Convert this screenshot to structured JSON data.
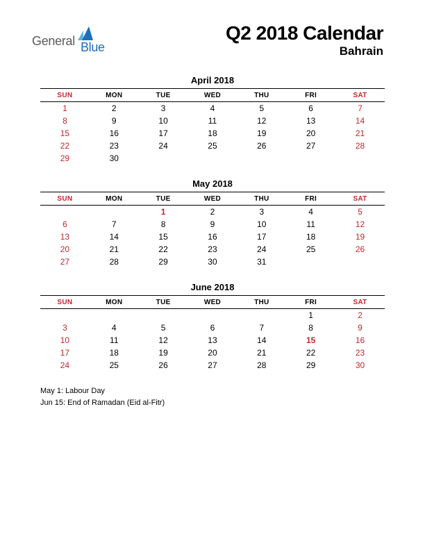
{
  "logo": {
    "text1": "General",
    "text2": "Blue"
  },
  "title": "Q2 2018 Calendar",
  "subtitle": "Bahrain",
  "colors": {
    "weekend": "#c1272d",
    "text": "#000000",
    "logo_gray": "#5a5a5c",
    "logo_blue": "#1e6fb8",
    "background": "#ffffff"
  },
  "day_headers": [
    "SUN",
    "MON",
    "TUE",
    "WED",
    "THU",
    "FRI",
    "SAT"
  ],
  "weekend_cols": [
    0,
    6
  ],
  "months": [
    {
      "title": "April 2018",
      "weeks": [
        [
          1,
          2,
          3,
          4,
          5,
          6,
          7
        ],
        [
          8,
          9,
          10,
          11,
          12,
          13,
          14
        ],
        [
          15,
          16,
          17,
          18,
          19,
          20,
          21
        ],
        [
          22,
          23,
          24,
          25,
          26,
          27,
          28
        ],
        [
          29,
          30,
          null,
          null,
          null,
          null,
          null
        ]
      ],
      "holidays": []
    },
    {
      "title": "May 2018",
      "weeks": [
        [
          null,
          null,
          1,
          2,
          3,
          4,
          5
        ],
        [
          6,
          7,
          8,
          9,
          10,
          11,
          12
        ],
        [
          13,
          14,
          15,
          16,
          17,
          18,
          19
        ],
        [
          20,
          21,
          22,
          23,
          24,
          25,
          26
        ],
        [
          27,
          28,
          29,
          30,
          31,
          null,
          null
        ]
      ],
      "holidays": [
        1
      ]
    },
    {
      "title": "June 2018",
      "weeks": [
        [
          null,
          null,
          null,
          null,
          null,
          1,
          2
        ],
        [
          3,
          4,
          5,
          6,
          7,
          8,
          9
        ],
        [
          10,
          11,
          12,
          13,
          14,
          15,
          16
        ],
        [
          17,
          18,
          19,
          20,
          21,
          22,
          23
        ],
        [
          24,
          25,
          26,
          27,
          28,
          29,
          30
        ]
      ],
      "holidays": [
        15
      ]
    }
  ],
  "holiday_notes": [
    "May 1: Labour Day",
    "Jun 15: End of Ramadan (Eid al-Fitr)"
  ]
}
